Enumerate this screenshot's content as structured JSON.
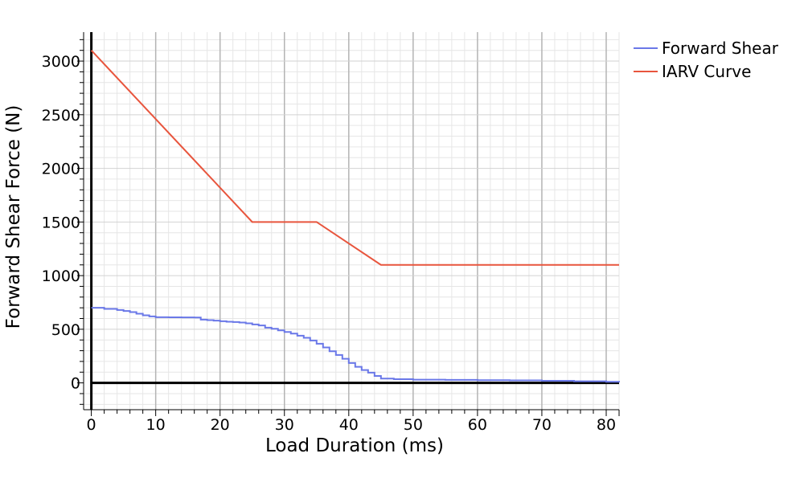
{
  "chart_data": {
    "type": "line",
    "xlabel": "Load Duration (ms)",
    "ylabel": "Forward Shear Force (N)",
    "xlim": [
      -1.2,
      82
    ],
    "ylim": [
      -250,
      3270
    ],
    "xticks": [
      "0",
      "10",
      "20",
      "30",
      "40",
      "50",
      "60",
      "70",
      "80"
    ],
    "yticks": [
      "0",
      "500",
      "1000",
      "1500",
      "2000",
      "2500",
      "3000"
    ],
    "grid": true,
    "legend_position": "top-right",
    "series": [
      {
        "name": "Forward Shear",
        "color": "#6a78e8",
        "step": true,
        "x": [
          0,
          2,
          4,
          5,
          6,
          7,
          8,
          9,
          10,
          12,
          14,
          16,
          17,
          18,
          19,
          20,
          21,
          22,
          23,
          24,
          25,
          26,
          27,
          28,
          29,
          30,
          31,
          32,
          33,
          34,
          35,
          36,
          37,
          38,
          39,
          40,
          41,
          42,
          43,
          44,
          45,
          47,
          50,
          55,
          60,
          65,
          70,
          75,
          80,
          82
        ],
        "y": [
          700,
          690,
          680,
          670,
          660,
          645,
          630,
          620,
          612,
          611,
          610,
          609,
          590,
          585,
          580,
          575,
          570,
          567,
          563,
          555,
          545,
          535,
          515,
          505,
          490,
          475,
          460,
          440,
          420,
          395,
          365,
          330,
          295,
          260,
          225,
          185,
          150,
          120,
          95,
          65,
          40,
          35,
          30,
          28,
          25,
          23,
          20,
          15,
          10,
          5
        ]
      },
      {
        "name": "IARV Curve",
        "color": "#e8553d",
        "step": false,
        "x": [
          0,
          25,
          35,
          45,
          82
        ],
        "y": [
          3100,
          1500,
          1500,
          1100,
          1100
        ]
      }
    ]
  }
}
